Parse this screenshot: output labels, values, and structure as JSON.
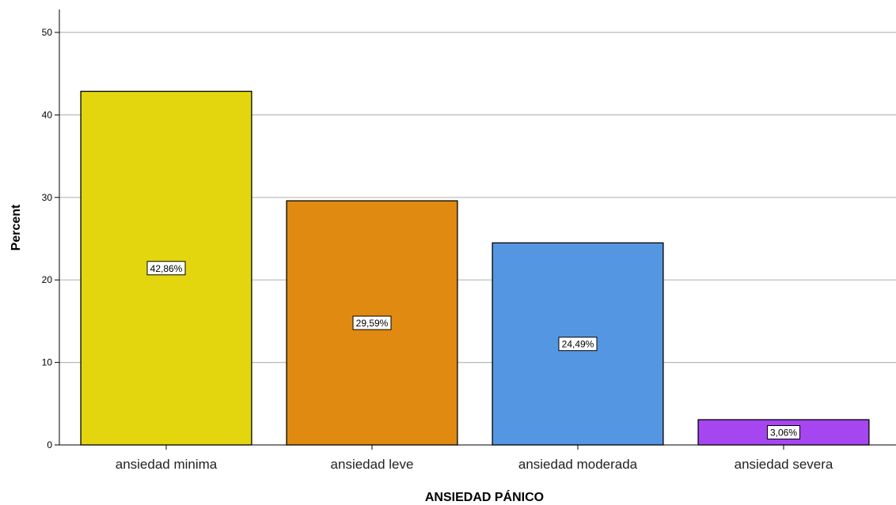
{
  "chart_data": {
    "type": "bar",
    "categories": [
      "ansiedad minima",
      "ansiedad leve",
      "ansiedad moderada",
      "ansiedad severa"
    ],
    "values": [
      42.86,
      29.59,
      24.49,
      3.06
    ],
    "data_labels": [
      "42,86%",
      "29,59%",
      "24,49%",
      "3,06%"
    ],
    "colors": [
      "#e3d60f",
      "#e08a12",
      "#5596e3",
      "#a646f0"
    ],
    "title": "",
    "xlabel": "ANSIEDAD PÁNICO",
    "ylabel": "Percent",
    "ylim": [
      0,
      50
    ],
    "yticks": [
      0,
      10,
      20,
      30,
      40,
      50
    ],
    "ytick_labels": [
      "0",
      "10",
      "20",
      "30",
      "40",
      "50"
    ],
    "grid": true,
    "gridline_color": "#b8b8b8",
    "bar_border_color": "#000000"
  }
}
